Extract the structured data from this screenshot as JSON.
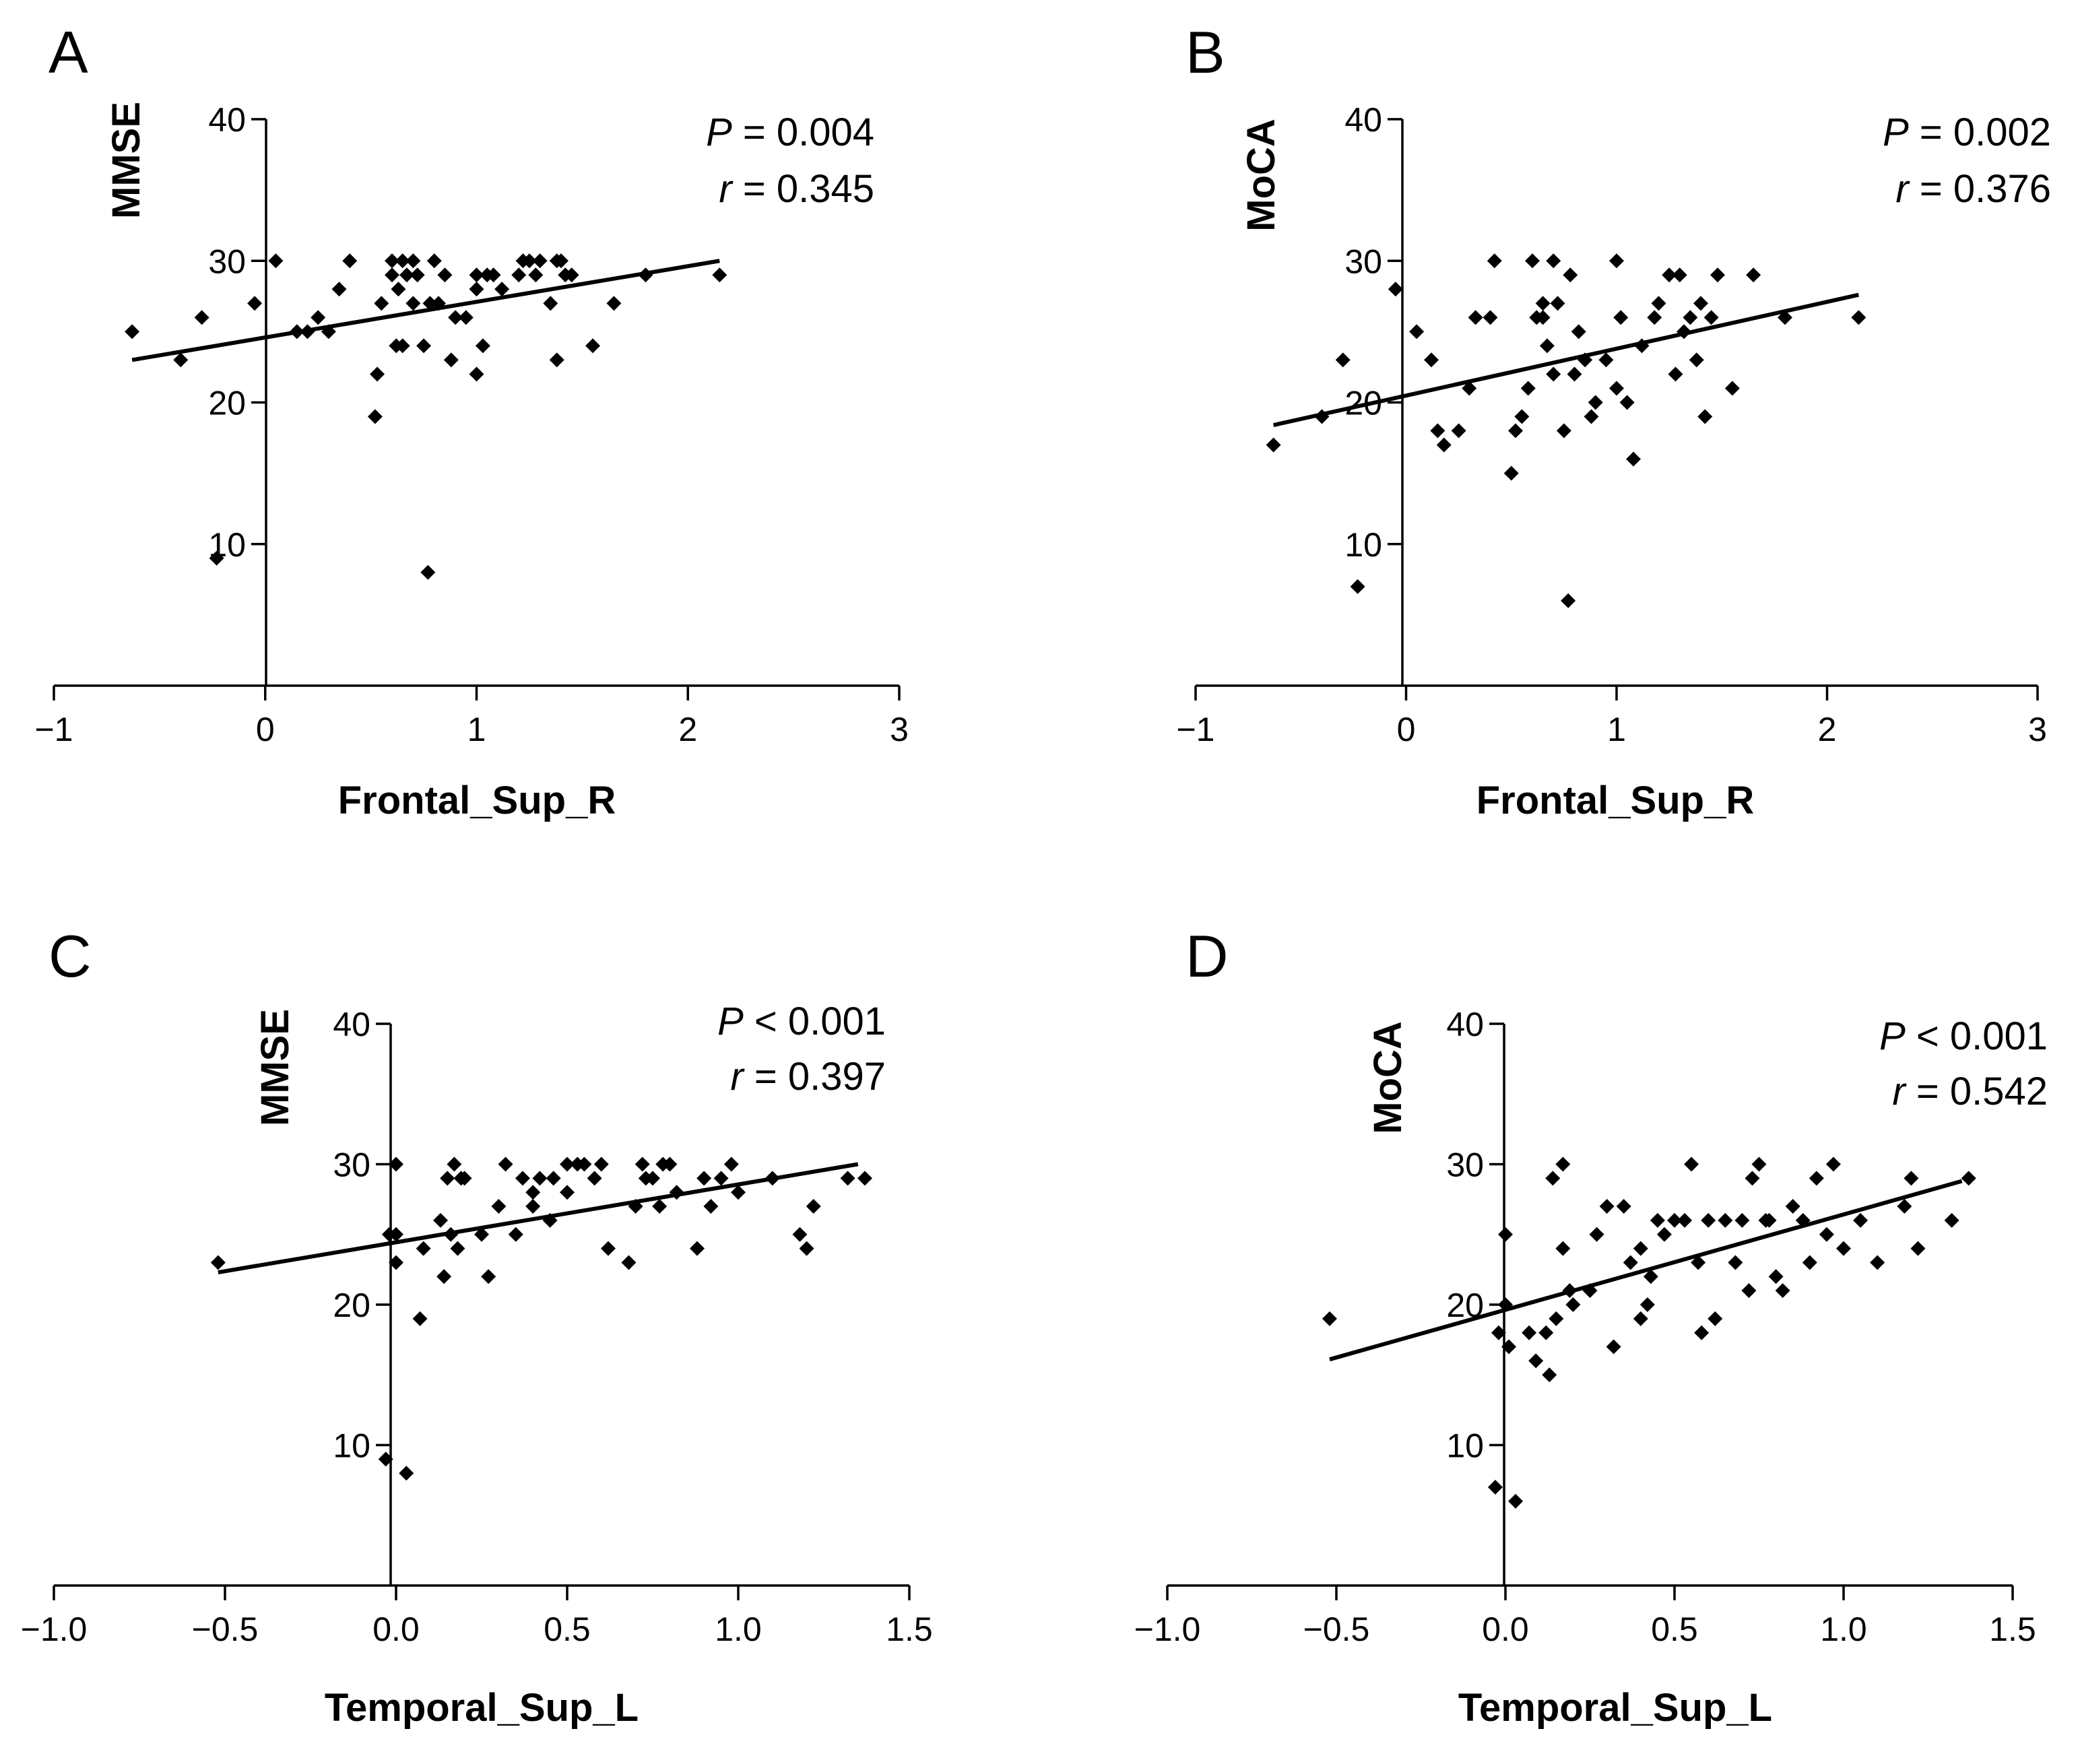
{
  "chart_data": [
    {
      "type": "scatter",
      "panel": "A",
      "xlabel": "Frontal_Sup_R",
      "ylabel": "MMSE",
      "xlim": [
        -1,
        3
      ],
      "ylim": [
        0,
        40
      ],
      "xticks": [
        -1,
        0,
        1,
        2,
        3
      ],
      "xtick_labels": [
        "−1",
        "0",
        "1",
        "2",
        "3"
      ],
      "yticks": [
        10,
        20,
        30,
        40
      ],
      "ytick_labels": [
        "10",
        "20",
        "30",
        "40"
      ],
      "stat_p_label": "P",
      "stat_p_value": " = 0.004",
      "stat_r_label": "r",
      "stat_r_value": " = 0.345",
      "fit_line": {
        "x": [
          -0.63,
          2.15
        ],
        "y": [
          23.0,
          30.0
        ]
      },
      "points": {
        "x": [
          -0.63,
          -0.4,
          -0.3,
          -0.23,
          -0.05,
          0.05,
          0.15,
          0.2,
          0.25,
          0.3,
          0.35,
          0.4,
          0.52,
          0.53,
          0.55,
          0.6,
          0.6,
          0.62,
          0.63,
          0.65,
          0.65,
          0.67,
          0.7,
          0.7,
          0.72,
          0.75,
          0.77,
          0.78,
          0.8,
          0.82,
          0.85,
          0.88,
          0.9,
          0.95,
          1.0,
          1.0,
          1.0,
          1.03,
          1.05,
          1.08,
          1.12,
          1.2,
          1.22,
          1.25,
          1.28,
          1.3,
          1.35,
          1.38,
          1.38,
          1.4,
          1.42,
          1.45,
          1.55,
          1.65,
          1.8,
          2.15
        ],
        "y": [
          25,
          23,
          26,
          9,
          27,
          30,
          25,
          25,
          26,
          25,
          28,
          30,
          19,
          22,
          27,
          30,
          29,
          24,
          28,
          30,
          24,
          29,
          27,
          30,
          29,
          24,
          8,
          27,
          30,
          27,
          29,
          23,
          26,
          26,
          29,
          28,
          22,
          24,
          29,
          29,
          28,
          29,
          30,
          30,
          29,
          30,
          27,
          23,
          30,
          30,
          29,
          29,
          24,
          27,
          29,
          29
        ]
      }
    },
    {
      "type": "scatter",
      "panel": "B",
      "xlabel": "Frontal_Sup_R",
      "ylabel": "MoCA",
      "xlim": [
        -1,
        3
      ],
      "ylim": [
        0,
        40
      ],
      "xticks": [
        -1,
        0,
        1,
        2,
        3
      ],
      "xtick_labels": [
        "−1",
        "0",
        "1",
        "2",
        "3"
      ],
      "yticks": [
        10,
        20,
        30,
        40
      ],
      "ytick_labels": [
        "10",
        "20",
        "30",
        "40"
      ],
      "stat_p_label": "P",
      "stat_p_value": " = 0.002",
      "stat_r_label": "r",
      "stat_r_value": " = 0.376",
      "fit_line": {
        "x": [
          -0.63,
          2.15
        ],
        "y": [
          18.4,
          27.6
        ]
      },
      "points": {
        "x": [
          -0.63,
          -0.4,
          -0.3,
          -0.23,
          -0.05,
          0.05,
          0.12,
          0.15,
          0.18,
          0.25,
          0.3,
          0.33,
          0.4,
          0.42,
          0.5,
          0.52,
          0.55,
          0.58,
          0.6,
          0.62,
          0.65,
          0.65,
          0.67,
          0.7,
          0.7,
          0.72,
          0.75,
          0.77,
          0.78,
          0.8,
          0.82,
          0.85,
          0.88,
          0.9,
          0.95,
          1.0,
          1.0,
          1.02,
          1.05,
          1.08,
          1.12,
          1.18,
          1.2,
          1.25,
          1.28,
          1.3,
          1.32,
          1.35,
          1.38,
          1.4,
          1.42,
          1.45,
          1.48,
          1.55,
          1.65,
          1.8,
          2.15
        ],
        "y": [
          17,
          19,
          23,
          7,
          28,
          25,
          23,
          18,
          17,
          18,
          21,
          26,
          26,
          30,
          15,
          18,
          19,
          21,
          30,
          26,
          27,
          26,
          24,
          30,
          22,
          27,
          18,
          6,
          29,
          22,
          25,
          23,
          19,
          20,
          23,
          30,
          21,
          26,
          20,
          16,
          24,
          26,
          27,
          29,
          22,
          29,
          25,
          26,
          23,
          27,
          19,
          26,
          29,
          21,
          29,
          26,
          26
        ]
      }
    },
    {
      "type": "scatter",
      "panel": "C",
      "xlabel": "Temporal_Sup_L",
      "ylabel": "MMSE",
      "xlim": [
        -1.0,
        1.5
      ],
      "ylim": [
        0,
        40
      ],
      "xticks": [
        -1.0,
        -0.5,
        0.0,
        0.5,
        1.0,
        1.5
      ],
      "xtick_labels": [
        "−1.0",
        "−0.5",
        "0.0",
        "0.5",
        "1.0",
        "1.5"
      ],
      "yticks": [
        10,
        20,
        30,
        40
      ],
      "ytick_labels": [
        "10",
        "20",
        "30",
        "40"
      ],
      "stat_p_label": "P",
      "stat_p_value": " < 0.001",
      "stat_r_label": "r",
      "stat_r_value": " = 0.397",
      "fit_line": {
        "x": [
          -0.52,
          1.35
        ],
        "y": [
          22.3,
          30.0
        ]
      },
      "points": {
        "x": [
          -0.52,
          -0.03,
          -0.02,
          0.0,
          0.0,
          0.0,
          0.03,
          0.07,
          0.08,
          0.13,
          0.14,
          0.15,
          0.16,
          0.17,
          0.18,
          0.19,
          0.2,
          0.25,
          0.27,
          0.3,
          0.32,
          0.35,
          0.37,
          0.4,
          0.4,
          0.42,
          0.45,
          0.46,
          0.5,
          0.5,
          0.53,
          0.55,
          0.58,
          0.6,
          0.62,
          0.68,
          0.7,
          0.72,
          0.73,
          0.75,
          0.77,
          0.78,
          0.8,
          0.82,
          0.88,
          0.9,
          0.92,
          0.95,
          0.98,
          1.0,
          1.1,
          1.18,
          1.2,
          1.22,
          1.32,
          1.37
        ],
        "y": [
          23,
          9,
          25,
          25,
          23,
          30,
          8,
          19,
          24,
          26,
          22,
          29,
          25,
          30,
          24,
          29,
          29,
          25,
          22,
          27,
          30,
          25,
          29,
          28,
          27,
          29,
          26,
          29,
          28,
          30,
          30,
          30,
          29,
          30,
          24,
          23,
          27,
          30,
          29,
          29,
          27,
          30,
          30,
          28,
          24,
          29,
          27,
          29,
          30,
          28,
          29,
          25,
          24,
          27,
          29,
          29
        ]
      }
    },
    {
      "type": "scatter",
      "panel": "D",
      "xlabel": "Temporal_Sup_L",
      "ylabel": "MoCA",
      "xlim": [
        -1.0,
        1.5
      ],
      "ylim": [
        0,
        40
      ],
      "xticks": [
        -1.0,
        -0.5,
        0.0,
        0.5,
        1.0,
        1.5
      ],
      "xtick_labels": [
        "−1.0",
        "−0.5",
        "0.0",
        "0.5",
        "1.0",
        "1.5"
      ],
      "yticks": [
        10,
        20,
        30,
        40
      ],
      "ytick_labels": [
        "10",
        "20",
        "30",
        "40"
      ],
      "stat_p_label": "P",
      "stat_p_value": " < 0.001",
      "stat_r_label": "r",
      "stat_r_value": " = 0.542",
      "fit_line": {
        "x": [
          -0.52,
          1.35
        ],
        "y": [
          16.1,
          28.8
        ]
      },
      "points": {
        "x": [
          -0.52,
          -0.03,
          -0.02,
          0.0,
          0.0,
          0.01,
          0.03,
          0.07,
          0.09,
          0.12,
          0.13,
          0.14,
          0.15,
          0.17,
          0.17,
          0.19,
          0.2,
          0.25,
          0.27,
          0.3,
          0.32,
          0.35,
          0.37,
          0.4,
          0.4,
          0.42,
          0.43,
          0.45,
          0.47,
          0.5,
          0.53,
          0.55,
          0.57,
          0.58,
          0.6,
          0.62,
          0.65,
          0.68,
          0.7,
          0.72,
          0.73,
          0.75,
          0.77,
          0.78,
          0.8,
          0.82,
          0.85,
          0.88,
          0.9,
          0.92,
          0.95,
          0.97,
          1.0,
          1.05,
          1.1,
          1.18,
          1.2,
          1.22,
          1.32,
          1.37
        ],
        "y": [
          19,
          7,
          18,
          20,
          25,
          17,
          6,
          18,
          16,
          18,
          15,
          29,
          19,
          30,
          24,
          21,
          20,
          21,
          25,
          27,
          17,
          27,
          23,
          24,
          19,
          20,
          22,
          26,
          25,
          26,
          26,
          30,
          23,
          18,
          26,
          19,
          26,
          23,
          26,
          21,
          29,
          30,
          26,
          26,
          22,
          21,
          27,
          26,
          23,
          29,
          25,
          30,
          24,
          26,
          23,
          27,
          29,
          24,
          26,
          29
        ]
      }
    }
  ],
  "panels": [
    {
      "letter": "A"
    },
    {
      "letter": "B"
    },
    {
      "letter": "C"
    },
    {
      "letter": "D"
    }
  ]
}
